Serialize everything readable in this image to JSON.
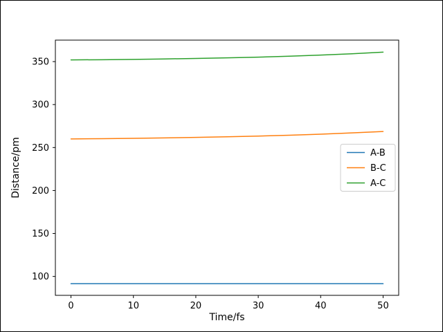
{
  "chart_data": {
    "type": "line",
    "title": "",
    "xlabel": "Time/fs",
    "ylabel": "Distance/pm",
    "x": [
      0,
      5,
      10,
      15,
      20,
      25,
      30,
      35,
      40,
      45,
      50
    ],
    "series": [
      {
        "name": "A-B",
        "color": "#1f77b4",
        "values": [
          91.6,
          91.6,
          91.6,
          91.6,
          91.6,
          91.6,
          91.6,
          91.6,
          91.6,
          91.6,
          91.6
        ]
      },
      {
        "name": "B-C",
        "color": "#ff7f0e",
        "values": [
          260.0,
          260.3,
          260.7,
          261.2,
          261.8,
          262.5,
          263.3,
          264.3,
          265.5,
          267.0,
          268.7
        ]
      },
      {
        "name": "A-C",
        "color": "#2ca02c",
        "values": [
          352.0,
          352.2,
          352.6,
          353.1,
          353.7,
          354.4,
          355.2,
          356.3,
          357.6,
          359.1,
          361.0
        ]
      }
    ],
    "xlim": [
      -2.5,
      52.5
    ],
    "ylim": [
      78,
      375
    ],
    "xticks": [
      0,
      10,
      20,
      30,
      40,
      50
    ],
    "yticks": [
      100,
      150,
      200,
      250,
      300,
      350
    ],
    "grid": false,
    "legend": {
      "position": "center-right",
      "entries": [
        "A-B",
        "B-C",
        "A-C"
      ]
    },
    "colors": {
      "axes": "#000000",
      "legend_border": "#cccccc",
      "background": "#ffffff",
      "figure_border": "#000000"
    }
  }
}
